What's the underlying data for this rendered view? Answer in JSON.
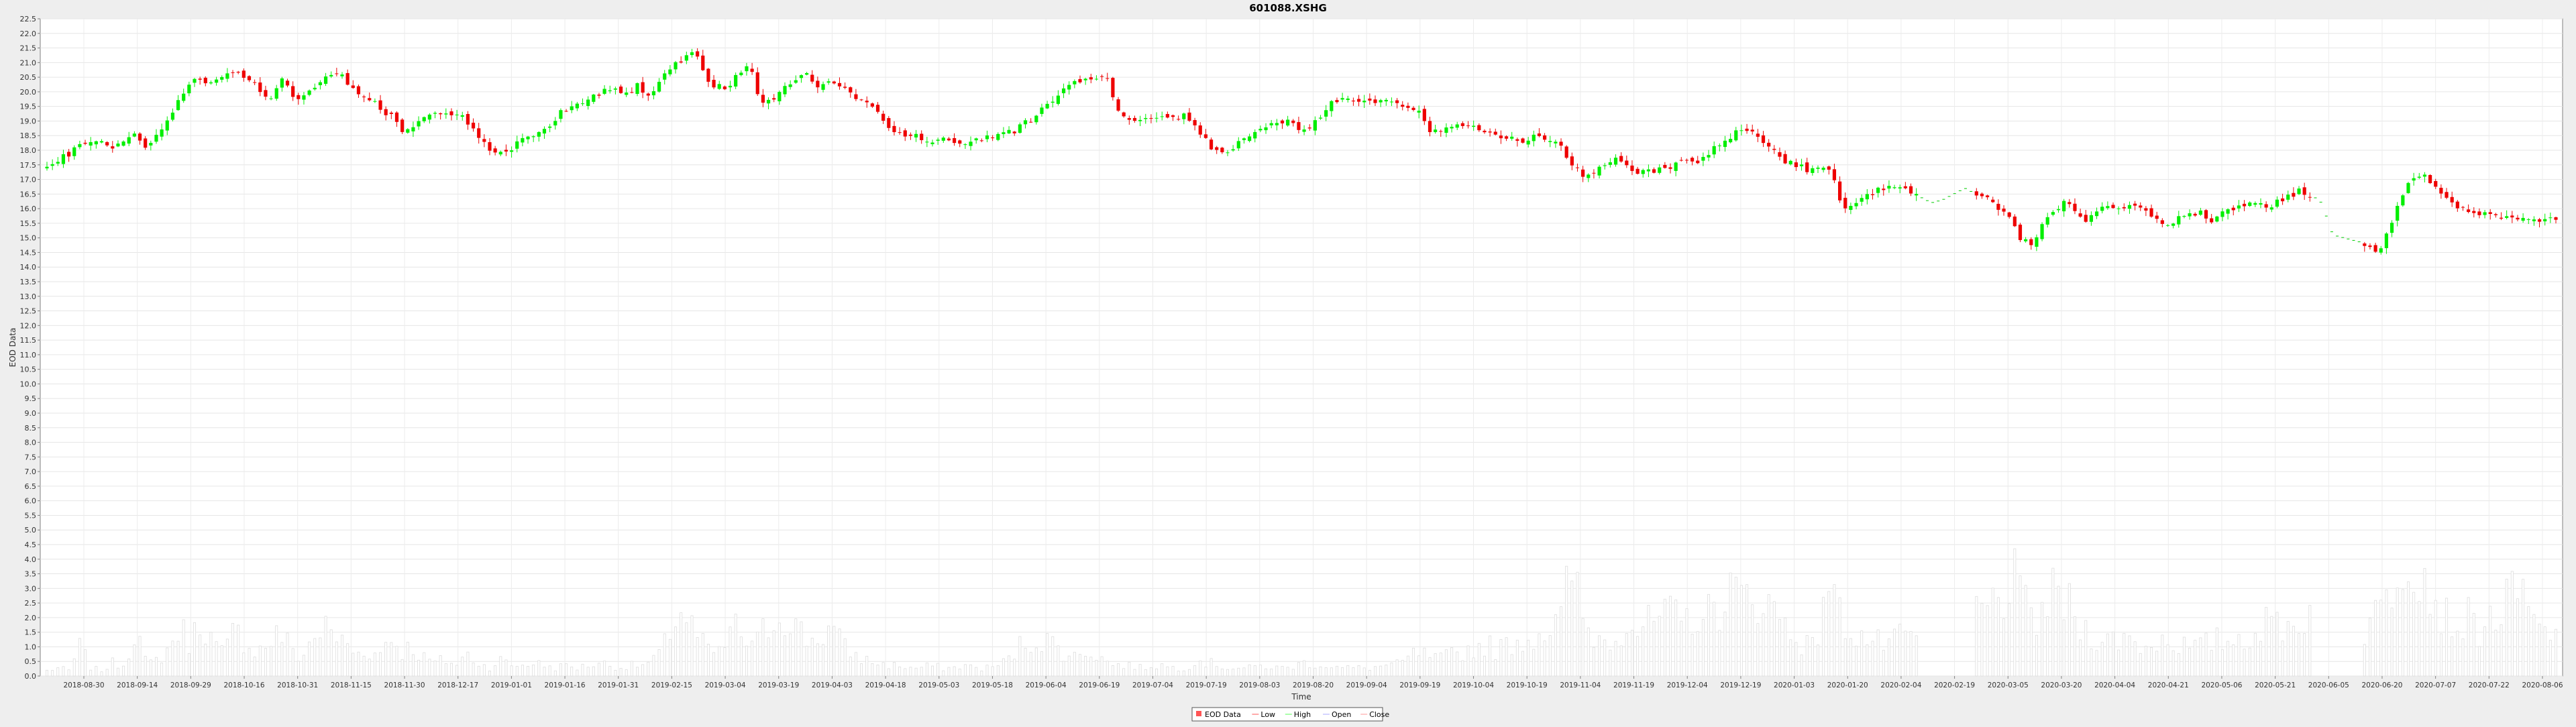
{
  "chart_data": {
    "type": "candlestick",
    "title": "601088.XSHG",
    "xlabel": "Time",
    "ylabel": "EOD Data",
    "ylim": [
      0.0,
      22.5
    ],
    "y_tick_step": 0.5,
    "x_tick_labels": [
      "2018-08-30",
      "2018-09-14",
      "2018-09-29",
      "2018-10-16",
      "2018-10-31",
      "2018-11-15",
      "2018-11-30",
      "2018-12-17",
      "2019-01-01",
      "2019-01-16",
      "2019-01-31",
      "2019-02-15",
      "2019-03-04",
      "2019-03-19",
      "2019-04-03",
      "2019-04-18",
      "2019-05-03",
      "2019-05-18",
      "2019-06-04",
      "2019-06-19",
      "2019-07-04",
      "2019-07-19",
      "2019-08-03",
      "2019-08-20",
      "2019-09-04",
      "2019-09-19",
      "2019-10-04",
      "2019-10-19",
      "2019-11-04",
      "2019-11-19",
      "2019-12-04",
      "2019-12-19",
      "2020-01-03",
      "2020-01-20",
      "2020-02-04",
      "2020-02-19",
      "2020-03-05",
      "2020-03-20",
      "2020-04-04",
      "2020-04-21",
      "2020-05-06",
      "2020-05-21",
      "2020-06-05",
      "2020-06-20",
      "2020-07-07",
      "2020-07-22",
      "2020-08-06"
    ],
    "close_path": [
      17.4,
      17.7,
      17.9,
      18.2,
      18.4,
      18.3,
      18.0,
      18.4,
      18.6,
      18.1,
      18.5,
      19.1,
      19.8,
      20.4,
      20.4,
      20.4,
      20.5,
      20.7,
      20.4,
      20.1,
      19.6,
      20.5,
      19.9,
      19.8,
      20.1,
      20.6,
      20.7,
      20.3,
      19.8,
      19.7,
      19.4,
      19.1,
      18.5,
      18.9,
      19.1,
      19.2,
      19.3,
      19.2,
      18.9,
      18.3,
      18.0,
      17.8,
      18.2,
      18.4,
      18.5,
      18.8,
      19.3,
      19.5,
      19.7,
      19.9,
      20.0,
      20.1,
      20.0,
      20.2,
      19.8,
      20.3,
      20.9,
      21.1,
      21.5,
      20.5,
      20.2,
      20.1,
      20.6,
      20.9,
      19.7,
      19.6,
      20.1,
      20.4,
      20.6,
      20.2,
      20.4,
      20.3,
      19.9,
      19.7,
      19.6,
      19.1,
      18.6,
      18.4,
      18.5,
      18.3,
      18.4,
      18.3,
      18.2,
      18.4,
      18.4,
      18.5,
      18.6,
      18.7,
      19.0,
      19.3,
      19.7,
      20.0,
      20.3,
      20.5,
      20.5,
      20.6,
      19.4,
      19.0,
      19.0,
      19.1,
      19.2,
      19.1,
      19.2,
      18.9,
      18.3,
      17.9,
      18.0,
      18.3,
      18.6,
      18.8,
      18.9,
      19.0,
      18.8,
      18.7,
      19.1,
      19.6,
      19.7,
      19.7,
      19.7,
      19.6,
      19.7,
      19.6,
      19.4,
      19.3,
      18.6,
      18.6,
      18.8,
      18.9,
      18.9,
      18.6,
      18.5,
      18.4,
      18.3,
      18.4,
      18.5,
      18.3,
      18.0,
      17.4,
      17.1,
      17.3,
      17.5,
      17.7,
      17.3,
      17.2,
      17.3,
      17.4,
      17.5,
      17.7,
      17.6,
      17.9,
      18.2,
      18.4,
      18.8,
      18.7,
      18.2,
      17.9,
      17.6,
      17.5,
      17.3,
      17.3,
      17.3,
      16.0,
      16.2,
      16.4,
      16.6,
      16.7,
      16.8,
      16.6,
      16.4,
      16.2,
      16.3,
      16.5,
      16.7,
      16.5,
      16.3,
      16.0,
      15.7,
      15.0,
      14.8,
      15.5,
      16.0,
      16.2,
      15.9,
      15.6,
      16.0,
      16.1,
      15.9,
      16.1,
      16.0,
      15.6,
      15.5,
      15.6,
      15.8,
      15.9,
      15.6,
      15.8,
      16.0,
      16.1,
      16.3,
      16.1,
      16.2,
      16.4,
      16.6,
      16.5,
      16.2,
      15.1,
      15.0,
      14.9,
      14.8,
      14.5,
      15.2,
      16.3,
      17.0,
      17.2,
      16.8,
      16.5,
      16.1,
      16.0,
      15.9,
      15.8,
      15.7,
      15.7,
      15.6,
      15.6,
      15.6,
      15.7
    ],
    "volume_path": [
      0.2,
      0.3,
      0.2,
      1.1,
      0.3,
      0.2,
      0.5,
      0.4,
      1.9,
      0.4,
      0.6,
      1.0,
      1.8,
      1.2,
      2.3,
      1.2,
      0.8,
      1.7,
      1.3,
      0.9,
      1.2,
      1.6,
      1.1,
      0.6,
      1.4,
      1.8,
      1.5,
      1.2,
      0.8,
      1.0,
      0.7,
      1.6,
      0.9,
      1.1,
      0.7,
      0.5,
      0.6,
      0.4,
      0.8,
      0.5,
      0.3,
      0.6,
      0.4,
      0.4,
      0.5,
      0.4,
      0.3,
      0.4,
      0.3,
      0.4,
      0.5,
      0.4,
      0.3,
      0.4,
      0.4,
      0.6,
      1.2,
      2.5,
      2.1,
      1.3,
      0.9,
      0.8,
      1.9,
      1.4,
      1.0,
      1.8,
      2.2,
      2.4,
      1.7,
      1.3,
      1.5,
      1.8,
      1.1,
      0.8,
      0.6,
      0.5,
      0.4,
      0.4,
      0.3,
      0.3,
      0.4,
      0.3,
      0.3,
      0.4,
      0.3,
      0.3,
      0.4,
      0.6,
      1.1,
      1.3,
      1.4,
      1.2,
      0.9,
      0.7,
      1.0,
      0.8,
      0.5,
      0.4,
      0.4,
      0.3,
      0.4,
      0.4,
      0.3,
      0.3,
      0.6,
      0.5,
      0.4,
      0.3,
      0.3,
      0.3,
      0.4,
      0.3,
      0.3,
      0.4,
      0.5,
      0.4,
      0.4,
      0.3,
      0.3,
      0.3,
      0.3,
      0.4,
      0.4,
      0.6,
      0.9,
      0.7,
      0.6,
      0.8,
      0.9,
      1.0,
      1.2,
      1.0,
      1.1,
      1.4,
      1.3,
      1.8,
      1.6,
      2.1,
      4.0,
      2.0,
      1.5,
      1.3,
      1.6,
      2.2,
      1.7,
      1.9,
      2.1,
      2.2,
      1.9,
      2.4,
      2.1,
      2.5,
      3.3,
      2.9,
      2.7,
      3.2,
      2.5,
      2.1,
      1.6,
      1.2,
      1.0,
      4.0,
      2.3,
      1.9,
      1.5,
      1.3,
      1.2,
      1.2,
      1.5,
      1.4,
      1.4,
      1.6,
      1.8,
      2.0,
      2.2,
      2.4,
      2.6,
      3.1,
      3.4,
      2.4,
      2.1,
      2.7,
      3.0,
      2.5,
      1.8,
      1.6,
      1.4,
      1.3,
      1.5,
      1.2,
      1.1,
      1.3,
      1.4,
      1.2,
      1.0,
      1.1,
      1.3,
      1.3,
      1.4,
      1.5,
      1.7,
      1.9,
      2.1,
      1.8,
      2.2,
      2.4,
      2.8,
      2.0,
      1.5,
      1.6,
      1.9,
      2.3,
      3.4,
      4.6,
      5.4,
      3.9,
      3.0,
      2.2,
      1.9,
      2.1,
      1.8,
      2.0,
      2.5,
      2.8,
      3.0,
      1.8,
      1.6,
      1.4
    ],
    "series": [
      {
        "name": "EOD Data",
        "color": "#ff5555"
      },
      {
        "name": "Low",
        "color": "#ff5555"
      },
      {
        "name": "High",
        "color": "#55ff55"
      },
      {
        "name": "Open",
        "color": "#aaaaff"
      },
      {
        "name": "Close",
        "color": "#ff9999"
      }
    ],
    "colors": {
      "up": "#00ee00",
      "down": "#ee0000",
      "volume": "#dddddd"
    },
    "grid": true,
    "legend_position": "bottom-center"
  }
}
